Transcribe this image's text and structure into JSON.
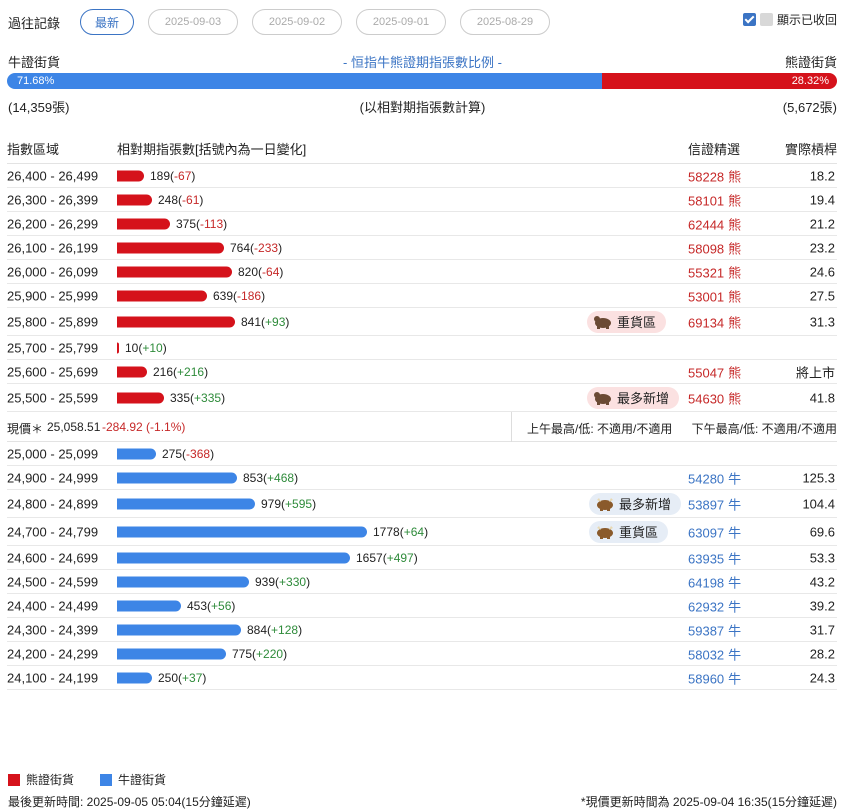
{
  "history": {
    "label": "過往記錄",
    "dates": [
      "最新",
      "2025-09-03",
      "2025-09-02",
      "2025-09-01",
      "2025-08-29"
    ],
    "active_index": 0
  },
  "show_collapsed": {
    "label": "顯示已收回",
    "checked": true
  },
  "sentiment": {
    "bull_label": "牛證街貨",
    "title": "- 恒指牛熊證期指張數比例 -",
    "bear_label": "熊證街貨",
    "bull_pct": "71.68%",
    "bear_pct": "28.32%",
    "bull_fraction": 0.7168,
    "bull_count": "(14,359張)",
    "note": "(以相對期指張數計算)",
    "bear_count": "(5,672張)"
  },
  "table": {
    "headers": {
      "range": "指數區域",
      "contracts": "相對期指張數[括號內為一日變化]",
      "pick": "信證精選",
      "leverage": "實際槓桿"
    },
    "bear_rows": [
      {
        "range": "26,400 - 26,499",
        "value": 189,
        "value_text": "189",
        "change": "-67",
        "code": "58228",
        "unit": "熊",
        "leverage": "18.2"
      },
      {
        "range": "26,300 - 26,399",
        "value": 248,
        "value_text": "248",
        "change": "-61",
        "code": "58101",
        "unit": "熊",
        "leverage": "19.4"
      },
      {
        "range": "26,200 - 26,299",
        "value": 375,
        "value_text": "375",
        "change": "-113",
        "code": "62444",
        "unit": "熊",
        "leverage": "21.2"
      },
      {
        "range": "26,100 - 26,199",
        "value": 764,
        "value_text": "764",
        "change": "-233",
        "code": "58098",
        "unit": "熊",
        "leverage": "23.2"
      },
      {
        "range": "26,000 - 26,099",
        "value": 820,
        "value_text": "820",
        "change": "-64",
        "code": "55321",
        "unit": "熊",
        "leverage": "24.6"
      },
      {
        "range": "25,900 - 25,999",
        "value": 639,
        "value_text": "639",
        "change": "-186",
        "code": "53001",
        "unit": "熊",
        "leverage": "27.5"
      },
      {
        "range": "25,800 - 25,899",
        "value": 841,
        "value_text": "841",
        "change": "+93",
        "tag": "重貨區",
        "code": "69134",
        "unit": "熊",
        "leverage": "31.3"
      },
      {
        "range": "25,700 - 25,799",
        "value": 10,
        "value_text": "10",
        "change": "+10",
        "code": "",
        "unit": "",
        "leverage": ""
      },
      {
        "range": "25,600 - 25,699",
        "value": 216,
        "value_text": "216",
        "change": "+216",
        "code": "55047",
        "unit": "熊",
        "leverage": "將上市"
      },
      {
        "range": "25,500 - 25,599",
        "value": 335,
        "value_text": "335",
        "change": "+335",
        "tag": "最多新增",
        "code": "54630",
        "unit": "熊",
        "leverage": "41.8"
      }
    ],
    "current_price": {
      "label": "現價＊",
      "price": "25,058.51",
      "change": "-284.92 (-1.1%)",
      "am": "上午最高/低: 不適用/不適用",
      "pm": "下午最高/低: 不適用/不適用"
    },
    "bull_rows": [
      {
        "range": "25,000 - 25,099",
        "value": 275,
        "value_text": "275",
        "change": "-368",
        "code": "",
        "unit": "",
        "leverage": ""
      },
      {
        "range": "24,900 - 24,999",
        "value": 853,
        "value_text": "853",
        "change": "+468",
        "code": "54280",
        "unit": "牛",
        "leverage": "125.3"
      },
      {
        "range": "24,800 - 24,899",
        "value": 979,
        "value_text": "979",
        "change": "+595",
        "tag": "最多新增",
        "code": "53897",
        "unit": "牛",
        "leverage": "104.4"
      },
      {
        "range": "24,700 - 24,799",
        "value": 1778,
        "value_text": "1778",
        "change": "+64",
        "tag": "重貨區",
        "code": "63097",
        "unit": "牛",
        "leverage": "69.6"
      },
      {
        "range": "24,600 - 24,699",
        "value": 1657,
        "value_text": "1657",
        "change": "+497",
        "code": "63935",
        "unit": "牛",
        "leverage": "53.3"
      },
      {
        "range": "24,500 - 24,599",
        "value": 939,
        "value_text": "939",
        "change": "+330",
        "code": "64198",
        "unit": "牛",
        "leverage": "43.2"
      },
      {
        "range": "24,400 - 24,499",
        "value": 453,
        "value_text": "453",
        "change": "+56",
        "code": "62932",
        "unit": "牛",
        "leverage": "39.2"
      },
      {
        "range": "24,300 - 24,399",
        "value": 884,
        "value_text": "884",
        "change": "+128",
        "code": "59387",
        "unit": "牛",
        "leverage": "31.7"
      },
      {
        "range": "24,200 - 24,299",
        "value": 775,
        "value_text": "775",
        "change": "+220",
        "code": "58032",
        "unit": "牛",
        "leverage": "28.2"
      },
      {
        "range": "24,100 - 24,199",
        "value": 250,
        "value_text": "250",
        "change": "+37",
        "code": "58960",
        "unit": "牛",
        "leverage": "24.3"
      }
    ],
    "max_value": 1778
  },
  "legend": {
    "bear": "熊證街貨",
    "bull": "牛證街貨"
  },
  "footer": {
    "last_update": "最後更新時間: 2025-09-05 05:04(15分鐘延遲)",
    "price_update": "*現價更新時間為 2025-09-04 16:35(15分鐘延遲)"
  },
  "colors": {
    "bear": "#d5121b",
    "bull": "#3d85e6",
    "accent": "#3b74c4"
  }
}
